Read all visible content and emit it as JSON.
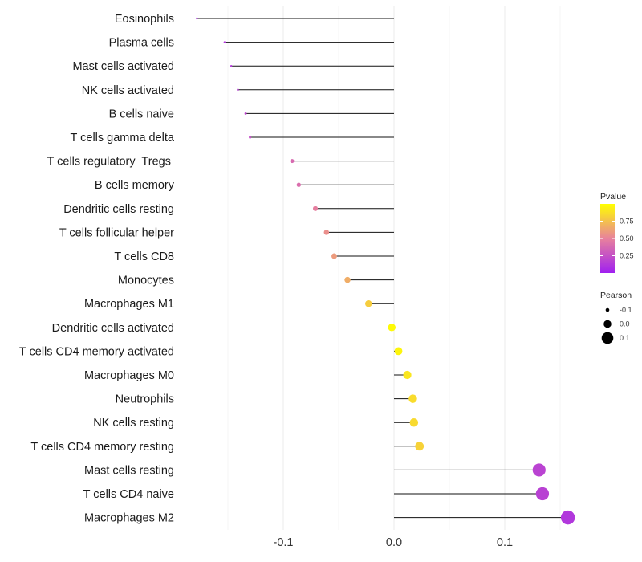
{
  "chart_data": {
    "type": "lollipop",
    "title": "",
    "xlabel": "",
    "ylabel": "",
    "xlim": [
      -0.18,
      0.158
    ],
    "x_ticks": [
      {
        "value": -0.1,
        "label": "-0.1"
      },
      {
        "value": 0.0,
        "label": "0.0"
      },
      {
        "value": 0.1,
        "label": "0.1"
      }
    ],
    "grid": true,
    "baseline": 0.0,
    "points": [
      {
        "name": "Eosinophils",
        "pearson": -0.178,
        "pvalue": 0.08
      },
      {
        "name": "Plasma cells",
        "pearson": -0.153,
        "pvalue": 0.13
      },
      {
        "name": "Mast cells activated",
        "pearson": -0.147,
        "pvalue": 0.14
      },
      {
        "name": "NK cells activated",
        "pearson": -0.141,
        "pvalue": 0.16
      },
      {
        "name": "B cells naive",
        "pearson": -0.134,
        "pvalue": 0.2
      },
      {
        "name": "T cells gamma delta",
        "pearson": -0.13,
        "pvalue": 0.24
      },
      {
        "name": "T cells regulatory  Tregs ",
        "pearson": -0.092,
        "pvalue": 0.38
      },
      {
        "name": "B cells memory",
        "pearson": -0.086,
        "pvalue": 0.4
      },
      {
        "name": "Dendritic cells resting",
        "pearson": -0.071,
        "pvalue": 0.48
      },
      {
        "name": "T cells follicular helper",
        "pearson": -0.061,
        "pvalue": 0.55
      },
      {
        "name": "T cells CD8",
        "pearson": -0.054,
        "pvalue": 0.6
      },
      {
        "name": "Monocytes",
        "pearson": -0.042,
        "pvalue": 0.67
      },
      {
        "name": "Macrophages M1",
        "pearson": -0.023,
        "pvalue": 0.8
      },
      {
        "name": "Dendritic cells activated",
        "pearson": -0.002,
        "pvalue": 0.98
      },
      {
        "name": "T cells CD4 memory activated",
        "pearson": 0.004,
        "pvalue": 0.96
      },
      {
        "name": "Macrophages M0",
        "pearson": 0.012,
        "pvalue": 0.9
      },
      {
        "name": "Neutrophils",
        "pearson": 0.017,
        "pvalue": 0.86
      },
      {
        "name": "NK cells resting",
        "pearson": 0.018,
        "pvalue": 0.85
      },
      {
        "name": "T cells CD4 memory resting",
        "pearson": 0.023,
        "pvalue": 0.82
      },
      {
        "name": "Mast cells resting",
        "pearson": 0.131,
        "pvalue": 0.18
      },
      {
        "name": "T cells CD4 naive",
        "pearson": 0.134,
        "pvalue": 0.17
      },
      {
        "name": "Macrophages M2",
        "pearson": 0.157,
        "pvalue": 0.12
      }
    ],
    "color_legend": {
      "title": "Pvalue",
      "range": [
        0.0,
        1.0
      ],
      "ticks": [
        {
          "value": 0.75,
          "label": "0.75"
        },
        {
          "value": 0.5,
          "label": "0.50"
        },
        {
          "value": 0.25,
          "label": "0.25"
        }
      ],
      "low_color": "#a020f0",
      "mid_color": "#e8829c",
      "high_color": "#ffff00"
    },
    "size_legend": {
      "title": "Pearson",
      "entries": [
        {
          "value": -0.1,
          "label": "-0.1"
        },
        {
          "value": 0.0,
          "label": "0.0"
        },
        {
          "value": 0.1,
          "label": "0.1"
        }
      ]
    },
    "legend_position": "right"
  }
}
